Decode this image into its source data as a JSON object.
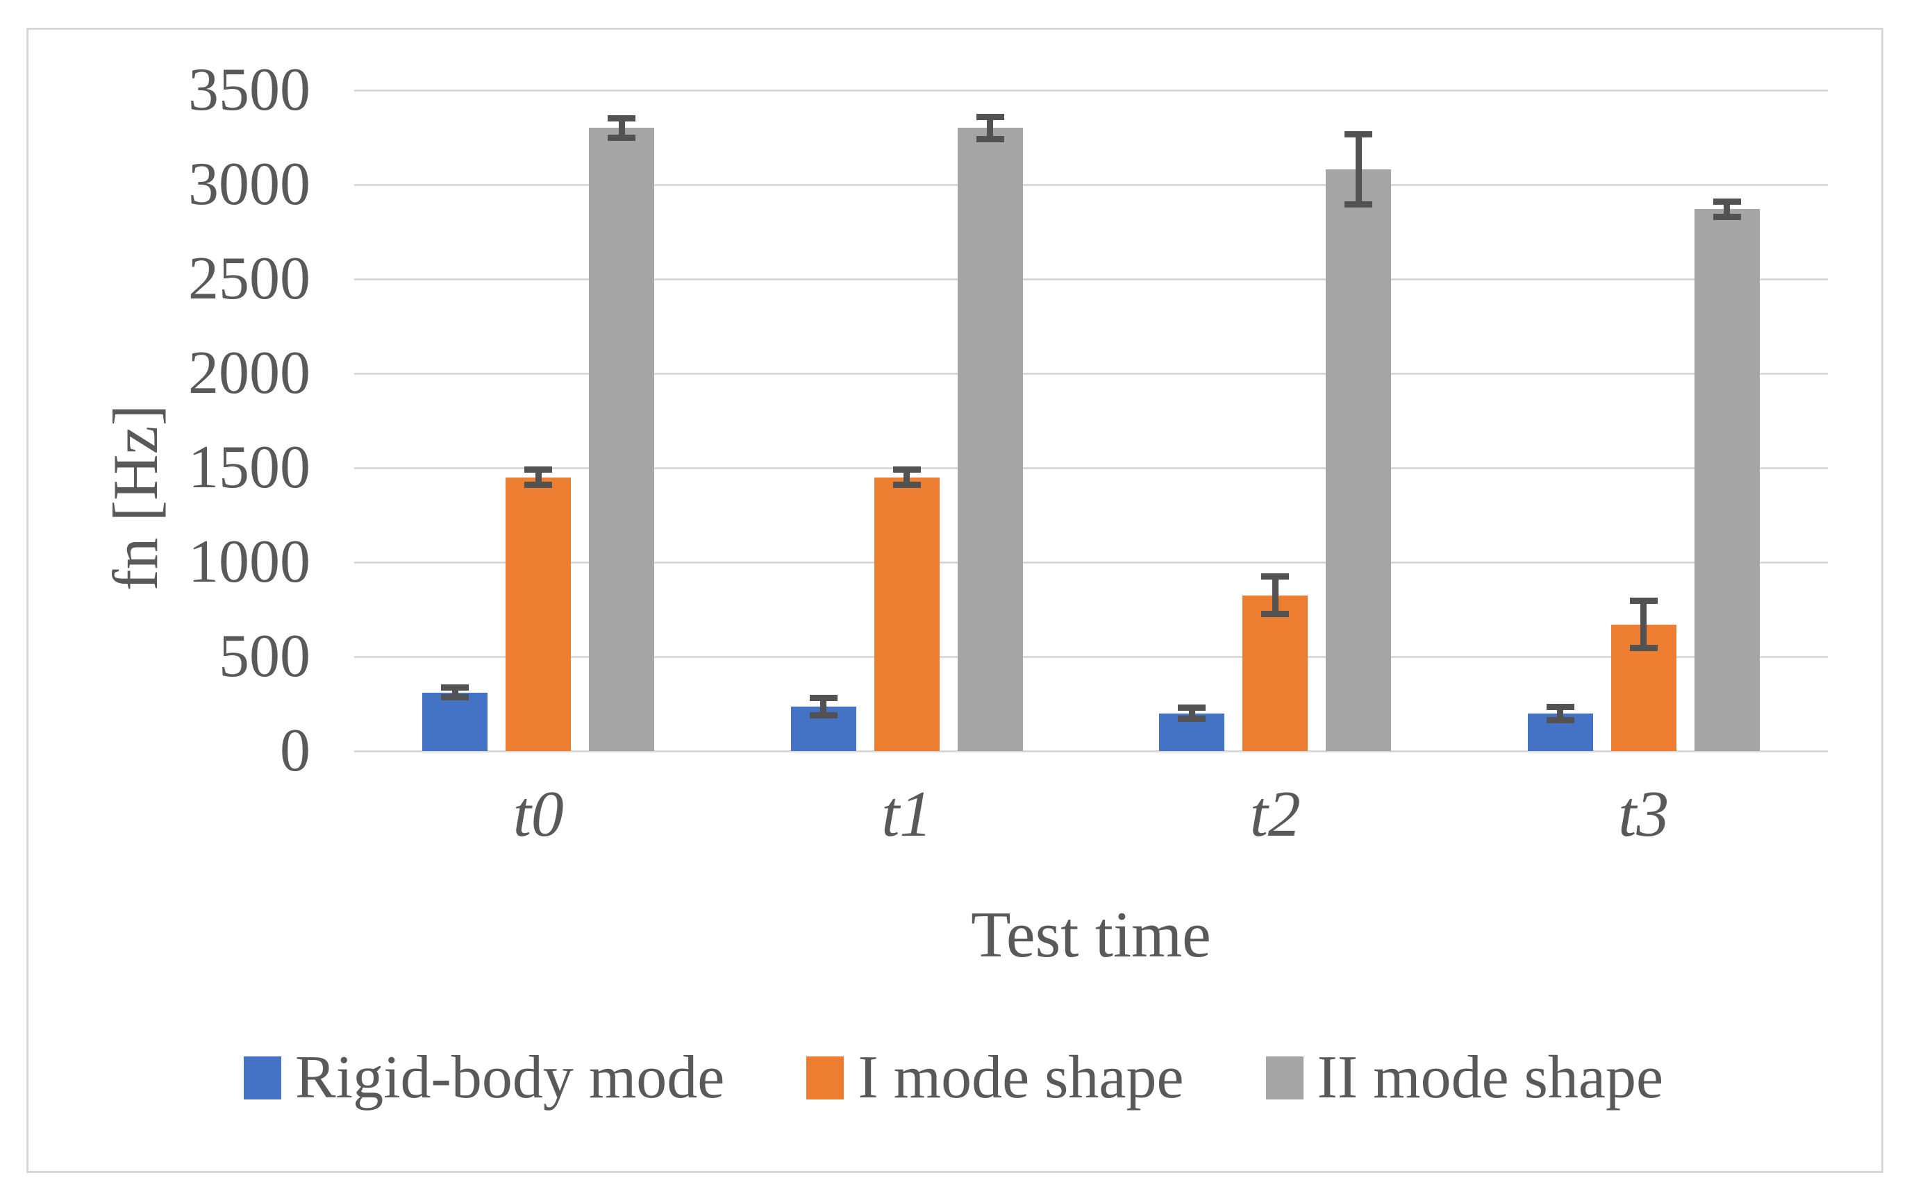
{
  "figure": {
    "background_color": "#ffffff",
    "border_color": "#d7d7d7",
    "gridline_color": "#d9d9d9",
    "text_color": "#595959",
    "error_bar_color": "#525252"
  },
  "chart_data": {
    "type": "bar",
    "title": "",
    "xlabel": "Test time",
    "ylabel": "fn [Hz]",
    "categories": [
      "t0",
      "t1",
      "t2",
      "t3"
    ],
    "series": [
      {
        "name": "Rigid-body mode",
        "color": "#4472C4",
        "values": [
          310,
          235,
          200,
          200
        ],
        "errors": [
          25,
          45,
          30,
          35
        ]
      },
      {
        "name": "I mode shape",
        "color": "#ED7D31",
        "values": [
          1450,
          1450,
          825,
          670
        ],
        "errors": [
          40,
          40,
          100,
          125
        ]
      },
      {
        "name": "II mode shape",
        "color": "#A5A5A5",
        "values": [
          3300,
          3300,
          3080,
          2870
        ],
        "errors": [
          50,
          60,
          185,
          40
        ]
      }
    ],
    "ylim": [
      0,
      3500
    ],
    "yticks": [
      0,
      500,
      1000,
      1500,
      2000,
      2500,
      3000,
      3500
    ],
    "grid": true,
    "legend_position": "bottom"
  }
}
